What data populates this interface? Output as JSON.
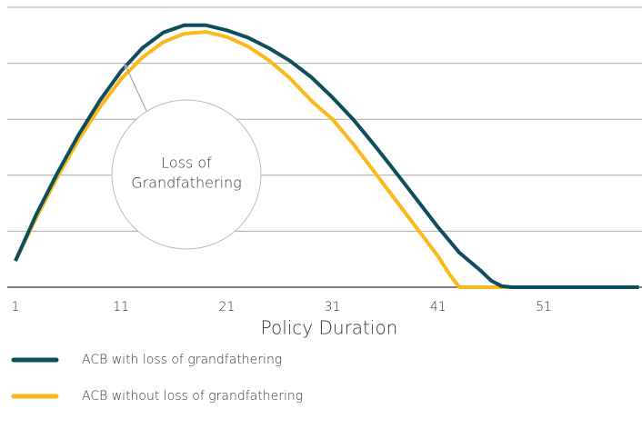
{
  "chart_data": {
    "type": "line",
    "xlabel": "Policy Duration",
    "xlim": [
      1,
      60
    ],
    "xticks": [
      1,
      11,
      21,
      31,
      41,
      51
    ],
    "ylim": [
      0,
      5
    ],
    "yticks": [
      0,
      1,
      2,
      3,
      4,
      5
    ],
    "grid": true,
    "annotation": [
      "Loss of",
      "Grandfathering"
    ],
    "series": [
      {
        "name": "ACB with loss of grandfathering",
        "color": "#0e4d5c",
        "x": [
          1,
          3,
          5,
          7,
          9,
          11,
          13,
          15,
          17,
          19,
          21,
          23,
          25,
          27,
          29,
          31,
          33,
          35,
          37,
          39,
          41,
          43,
          45,
          46,
          47,
          48,
          60
        ],
        "values": [
          0.47,
          1.31,
          2.05,
          2.73,
          3.34,
          3.86,
          4.27,
          4.55,
          4.68,
          4.68,
          4.59,
          4.46,
          4.27,
          4.04,
          3.75,
          3.39,
          2.99,
          2.53,
          2.05,
          1.56,
          1.07,
          0.62,
          0.3,
          0.12,
          0.02,
          0,
          0
        ]
      },
      {
        "name": "ACB without loss of grandfathering",
        "color": "#fbb81b",
        "x": [
          1,
          3,
          5,
          7,
          9,
          11,
          13,
          15,
          17,
          19,
          21,
          23,
          25,
          27,
          29,
          31,
          33,
          35,
          37,
          39,
          41,
          42,
          43,
          60
        ],
        "values": [
          0.47,
          1.25,
          1.98,
          2.64,
          3.22,
          3.72,
          4.1,
          4.38,
          4.53,
          4.56,
          4.47,
          4.3,
          4.05,
          3.73,
          3.33,
          3.0,
          2.55,
          2.05,
          1.55,
          1.05,
          0.55,
          0.25,
          0,
          0
        ]
      }
    ]
  }
}
